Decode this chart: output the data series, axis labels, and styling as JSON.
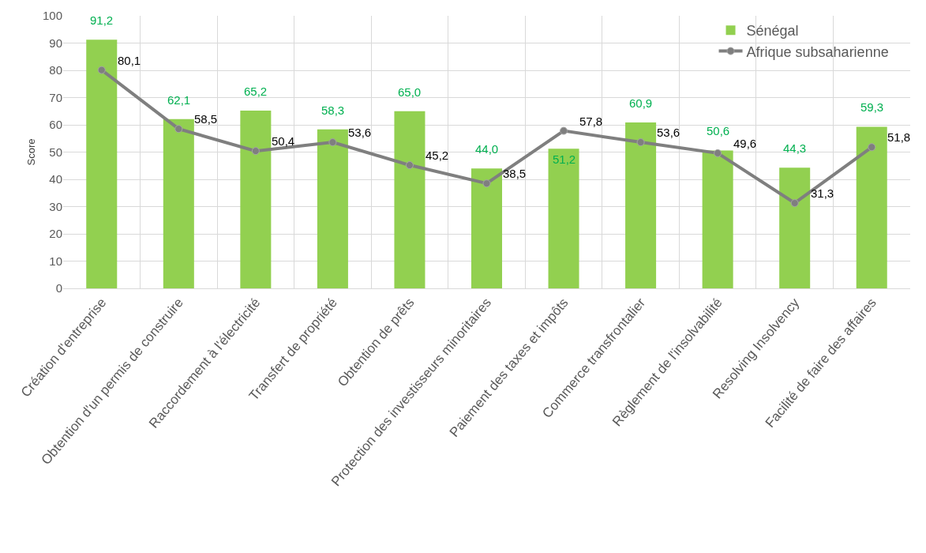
{
  "chart_data": {
    "type": "bar",
    "ylabel": "Score",
    "categories": [
      "Création d'entreprise",
      "Obtention d'un permis de construire",
      "Raccordement à l'électricité",
      "Transfert de propriété",
      "Obtention de prêts",
      "Protection des investisseurs minoritaires",
      "Paiement des taxes et impôts",
      "Commerce transfrontalier",
      "Règlement de l'insolvabilité",
      "Resolving Insolvency",
      "Facilité de faire des affaires"
    ],
    "series": [
      {
        "name": "Sénégal",
        "color": "#92d050",
        "values": [
          91.2,
          62.1,
          65.2,
          58.3,
          65.0,
          44.0,
          51.2,
          60.9,
          50.6,
          44.3,
          59.3
        ],
        "value_labels": [
          "91,2",
          "62,1",
          "65,2",
          "58,3",
          "65,0",
          "44,0",
          "51,2",
          "60,9",
          "50,6",
          "44,3",
          "59,3"
        ]
      },
      {
        "name": "Afrique subsaharienne",
        "type": "line",
        "color": "#7f7f7f",
        "marker": "circle",
        "line_style": "solid",
        "values": [
          80.1,
          58.5,
          50.4,
          53.6,
          45.2,
          38.5,
          57.8,
          53.6,
          49.6,
          31.3,
          51.8
        ],
        "value_labels": [
          "80,1",
          "58,5",
          "50,4",
          "53,6",
          "45,2",
          "38,5",
          "57,8",
          "53,6",
          "49,6",
          "31,3",
          "51,8"
        ]
      }
    ],
    "ylim": [
      0,
      100
    ],
    "yticks": [
      0,
      10,
      20,
      30,
      40,
      50,
      60,
      70,
      80,
      90,
      100
    ],
    "grid": true,
    "legend": "top right"
  }
}
